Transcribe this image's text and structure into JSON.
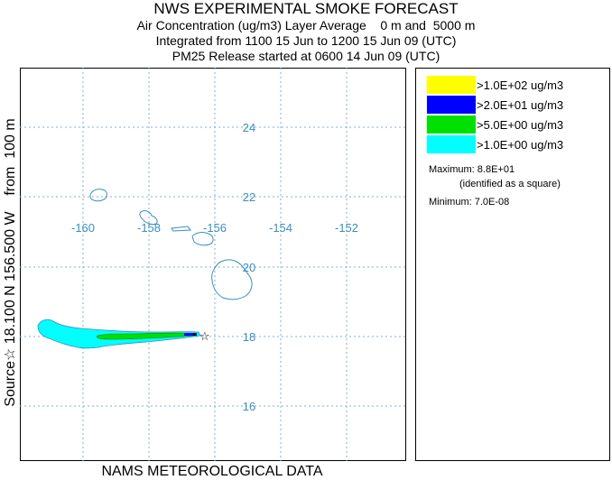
{
  "header": {
    "title": "NWS EXPERIMENTAL SMOKE FORECAST",
    "line2": "Air Concentration (ug/m3) Layer Average    0 m and  5000 m",
    "line3": "Integrated from 1100 15 Jun to 1200 15 Jun 09 (UTC)",
    "line4": "PM25 Release started at 0600 14 Jun 09 (UTC)"
  },
  "side_label": "Source☆ 18.100 N 156.500 W    from  100 m",
  "footer": "NAMS METEOROLOGICAL DATA",
  "map": {
    "lon_labels": [
      "-160",
      "-158",
      "-156",
      "-154",
      "-152"
    ],
    "lat_labels": [
      "24",
      "22",
      "20",
      "18",
      "16"
    ],
    "source_marker": "☆",
    "grid_color": "#7fb0d0",
    "label_color": "#3a8fc0"
  },
  "legend": {
    "items": [
      {
        "label": ">1.0E+02 ug/m3",
        "color": "#ffff00"
      },
      {
        "label": ">2.0E+01 ug/m3",
        "color": "#0000ff"
      },
      {
        "label": ">5.0E+00 ug/m3",
        "color": "#00e000"
      },
      {
        "label": ">1.0E+00 ug/m3",
        "color": "#00ffff"
      }
    ],
    "maximum": "Maximum: 8.8E+01",
    "maximum_note": "(identified as a square)",
    "minimum": "Minimum: 7.0E-08"
  }
}
